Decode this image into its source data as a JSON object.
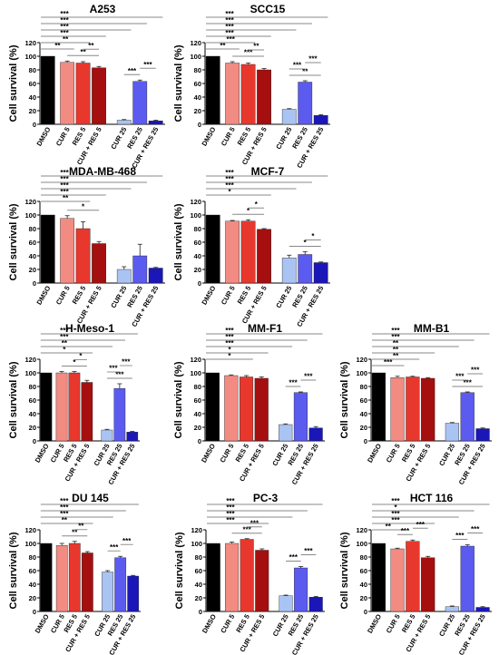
{
  "colors": {
    "DMSO": "#000000",
    "CUR 5": "#f28b82",
    "RES 5": "#e8382e",
    "CUR + RES 5": "#a50f0f",
    "CUR 25": "#a9c4f2",
    "RES 25": "#5b5bf0",
    "CUR + RES 25": "#1a16b8",
    "axis": "#000000",
    "sig_line": "#888888"
  },
  "shared_ylabel": "Cell survival (%)",
  "chart_data": [
    {
      "type": "bar",
      "title": "A253",
      "categories": [
        "DMSO",
        "CUR 5",
        "RES 5",
        "CUR + RES 5",
        "CUR 25",
        "RES 25",
        "CUR + RES 25"
      ],
      "values": [
        100,
        91,
        90,
        83,
        6,
        63,
        5
      ],
      "errors": [
        0,
        2,
        2,
        2,
        1,
        2,
        1
      ],
      "ylabel": "Cell survival (%)",
      "ylim": [
        0,
        120
      ],
      "yticks": [
        0,
        20,
        40,
        60,
        80,
        100,
        120
      ],
      "significance": [
        {
          "from": 0,
          "to": 6,
          "label": "***"
        },
        {
          "from": 0,
          "to": 5,
          "label": "***"
        },
        {
          "from": 0,
          "to": 4,
          "label": "***"
        },
        {
          "from": 0,
          "to": 3,
          "label": "***"
        },
        {
          "from": 0,
          "to": 2,
          "label": "**"
        },
        {
          "from": 0,
          "to": 1,
          "label": "**"
        },
        {
          "from": 1,
          "to": 3,
          "label": "**"
        },
        {
          "from": 2,
          "to": 3,
          "label": "**"
        },
        {
          "from": 4,
          "to": 5,
          "label": "***"
        },
        {
          "from": 5,
          "to": 6,
          "label": "***"
        }
      ]
    },
    {
      "type": "bar",
      "title": "SCC15",
      "categories": [
        "DMSO",
        "CUR 5",
        "RES 5",
        "CUR + RES 5",
        "CUR 25",
        "RES 25",
        "CUR + RES 25"
      ],
      "values": [
        100,
        90,
        88,
        80,
        22,
        62,
        13
      ],
      "errors": [
        0,
        2,
        2,
        2,
        1,
        2,
        1
      ],
      "ylabel": "Cell survival (%)",
      "ylim": [
        0,
        120
      ],
      "yticks": [
        0,
        20,
        40,
        60,
        80,
        100,
        120
      ],
      "significance": [
        {
          "from": 0,
          "to": 6,
          "label": "***"
        },
        {
          "from": 0,
          "to": 5,
          "label": "***"
        },
        {
          "from": 0,
          "to": 4,
          "label": "***"
        },
        {
          "from": 0,
          "to": 3,
          "label": "***"
        },
        {
          "from": 0,
          "to": 2,
          "label": "***"
        },
        {
          "from": 0,
          "to": 1,
          "label": "**"
        },
        {
          "from": 1,
          "to": 3,
          "label": "***"
        },
        {
          "from": 2,
          "to": 3,
          "label": "**"
        },
        {
          "from": 4,
          "to": 6,
          "label": "**"
        },
        {
          "from": 4,
          "to": 5,
          "label": "***"
        },
        {
          "from": 5,
          "to": 6,
          "label": "***"
        }
      ]
    },
    {
      "type": "bar",
      "title": "MDA-MB-468",
      "categories": [
        "DMSO",
        "CUR 5",
        "RES 5",
        "CUR + RES 5",
        "CUR 25",
        "RES 25",
        "CUR + RES 25"
      ],
      "values": [
        100,
        95,
        80,
        58,
        20,
        40,
        22
      ],
      "errors": [
        0,
        4,
        10,
        3,
        4,
        17,
        1
      ],
      "ylabel": "Cell survival (%)",
      "ylim": [
        0,
        120
      ],
      "yticks": [
        0,
        20,
        40,
        60,
        80,
        100,
        120
      ],
      "significance": [
        {
          "from": 0,
          "to": 6,
          "label": "***"
        },
        {
          "from": 0,
          "to": 5,
          "label": "***"
        },
        {
          "from": 0,
          "to": 4,
          "label": "***"
        },
        {
          "from": 0,
          "to": 3,
          "label": "***"
        },
        {
          "from": 0,
          "to": 2,
          "label": "**"
        },
        {
          "from": 1,
          "to": 3,
          "label": "*"
        }
      ]
    },
    {
      "type": "bar",
      "title": "MCF-7",
      "categories": [
        "DMSO",
        "CUR 5",
        "RES 5",
        "CUR + RES 5",
        "CUR 25",
        "RES 25",
        "CUR + RES 25"
      ],
      "values": [
        100,
        91,
        91,
        79,
        37,
        42,
        30
      ],
      "errors": [
        0,
        1,
        2,
        1,
        4,
        4,
        1
      ],
      "ylabel": "Cell survival (%)",
      "ylim": [
        0,
        120
      ],
      "yticks": [
        0,
        20,
        40,
        60,
        80,
        100,
        120
      ],
      "significance": [
        {
          "from": 0,
          "to": 6,
          "label": "***"
        },
        {
          "from": 0,
          "to": 5,
          "label": "***"
        },
        {
          "from": 0,
          "to": 4,
          "label": "***"
        },
        {
          "from": 0,
          "to": 3,
          "label": "*"
        },
        {
          "from": 1,
          "to": 3,
          "label": "*"
        },
        {
          "from": 2,
          "to": 3,
          "label": "*"
        },
        {
          "from": 4,
          "to": 6,
          "label": "*"
        },
        {
          "from": 5,
          "to": 6,
          "label": "*"
        }
      ]
    },
    {
      "type": "bar",
      "title": "H-Meso-1",
      "categories": [
        "DMSO",
        "CUR 5",
        "RES 5",
        "CUR + RES 5",
        "CUR 25",
        "RES 25",
        "CUR + RES 25"
      ],
      "values": [
        100,
        100,
        100,
        86,
        16,
        77,
        13
      ],
      "errors": [
        0,
        2,
        2,
        3,
        1,
        7,
        1
      ],
      "ylabel": "Cell survival (%)",
      "ylim": [
        0,
        120
      ],
      "yticks": [
        0,
        20,
        40,
        60,
        80,
        100,
        120
      ],
      "significance": [
        {
          "from": 0,
          "to": 6,
          "label": "***"
        },
        {
          "from": 0,
          "to": 5,
          "label": "***"
        },
        {
          "from": 0,
          "to": 4,
          "label": "**"
        },
        {
          "from": 0,
          "to": 3,
          "label": "*"
        },
        {
          "from": 1,
          "to": 3,
          "label": "*"
        },
        {
          "from": 2,
          "to": 3,
          "label": "*"
        },
        {
          "from": 4,
          "to": 6,
          "label": "***"
        },
        {
          "from": 4,
          "to": 5,
          "label": "***"
        },
        {
          "from": 5,
          "to": 6,
          "label": "***"
        }
      ]
    },
    {
      "type": "bar",
      "title": "MM-F1",
      "categories": [
        "DMSO",
        "CUR 5",
        "RES 5",
        "CUR + RES 5",
        "CUR 25",
        "RES 25",
        "CUR + RES 25"
      ],
      "values": [
        100,
        96,
        94,
        92,
        24,
        71,
        19
      ],
      "errors": [
        0,
        1,
        2,
        2,
        1,
        1,
        2
      ],
      "ylabel": "Cell survival (%)",
      "ylim": [
        0,
        120
      ],
      "yticks": [
        0,
        20,
        40,
        60,
        80,
        100,
        120
      ],
      "significance": [
        {
          "from": 0,
          "to": 6,
          "label": "***"
        },
        {
          "from": 0,
          "to": 5,
          "label": "***"
        },
        {
          "from": 0,
          "to": 4,
          "label": "***"
        },
        {
          "from": 0,
          "to": 3,
          "label": "*"
        },
        {
          "from": 0,
          "to": 2,
          "label": "*"
        },
        {
          "from": 4,
          "to": 5,
          "label": "***"
        },
        {
          "from": 5,
          "to": 6,
          "label": "***"
        }
      ]
    },
    {
      "type": "bar",
      "title": "MM-B1",
      "categories": [
        "DMSO",
        "CUR 5",
        "RES 5",
        "CUR + RES 5",
        "CUR 25",
        "RES 25",
        "CUR + RES 25"
      ],
      "values": [
        100,
        93,
        94,
        92,
        26,
        71,
        18
      ],
      "errors": [
        0,
        2,
        1,
        1,
        1,
        1,
        1
      ],
      "ylabel": "Cell survival (%)",
      "ylim": [
        0,
        120
      ],
      "yticks": [
        0,
        20,
        40,
        60,
        80,
        100,
        120
      ],
      "significance": [
        {
          "from": 0,
          "to": 6,
          "label": "***"
        },
        {
          "from": 0,
          "to": 5,
          "label": "***"
        },
        {
          "from": 0,
          "to": 4,
          "label": "**"
        },
        {
          "from": 0,
          "to": 3,
          "label": "**"
        },
        {
          "from": 0,
          "to": 2,
          "label": "**"
        },
        {
          "from": 0,
          "to": 1,
          "label": "***"
        },
        {
          "from": 4,
          "to": 6,
          "label": "***"
        },
        {
          "from": 4,
          "to": 5,
          "label": "***"
        },
        {
          "from": 5,
          "to": 6,
          "label": "***"
        }
      ]
    },
    {
      "type": "bar",
      "title": "DU 145",
      "categories": [
        "DMSO",
        "CUR 5",
        "RES 5",
        "CUR + RES 5",
        "CUR 25",
        "RES 25",
        "CUR + RES 25"
      ],
      "values": [
        100,
        97,
        100,
        86,
        58,
        79,
        52
      ],
      "errors": [
        0,
        3,
        3,
        2,
        2,
        2,
        1
      ],
      "ylabel": "Cell survival (%)",
      "ylim": [
        0,
        120
      ],
      "yticks": [
        0,
        20,
        40,
        60,
        80,
        100,
        120
      ],
      "significance": [
        {
          "from": 0,
          "to": 6,
          "label": "***"
        },
        {
          "from": 0,
          "to": 5,
          "label": "***"
        },
        {
          "from": 0,
          "to": 4,
          "label": "***"
        },
        {
          "from": 0,
          "to": 3,
          "label": "**"
        },
        {
          "from": 1,
          "to": 3,
          "label": "**"
        },
        {
          "from": 2,
          "to": 3,
          "label": "**"
        },
        {
          "from": 4,
          "to": 5,
          "label": "***"
        },
        {
          "from": 5,
          "to": 6,
          "label": "***"
        }
      ]
    },
    {
      "type": "bar",
      "title": "PC-3",
      "categories": [
        "DMSO",
        "CUR 5",
        "RES 5",
        "CUR + RES 5",
        "CUR 25",
        "RES 25",
        "CUR + RES 25"
      ],
      "values": [
        100,
        100,
        106,
        90,
        23,
        64,
        21
      ],
      "errors": [
        0,
        2,
        1,
        2,
        1,
        2,
        1
      ],
      "ylabel": "Cell survival (%)",
      "ylim": [
        0,
        120
      ],
      "yticks": [
        0,
        20,
        40,
        60,
        80,
        100,
        120
      ],
      "significance": [
        {
          "from": 0,
          "to": 6,
          "label": "***"
        },
        {
          "from": 0,
          "to": 5,
          "label": "***"
        },
        {
          "from": 0,
          "to": 4,
          "label": "***"
        },
        {
          "from": 0,
          "to": 3,
          "label": "***"
        },
        {
          "from": 1,
          "to": 3,
          "label": "***"
        },
        {
          "from": 2,
          "to": 3,
          "label": "***"
        },
        {
          "from": 4,
          "to": 5,
          "label": "***"
        },
        {
          "from": 5,
          "to": 6,
          "label": "***"
        }
      ]
    },
    {
      "type": "bar",
      "title": "HCT 116",
      "categories": [
        "DMSO",
        "CUR 5",
        "RES 5",
        "CUR + RES 5",
        "CUR 25",
        "RES 25",
        "CUR + RES 25"
      ],
      "values": [
        100,
        92,
        103,
        79,
        7,
        96,
        6
      ],
      "errors": [
        0,
        1,
        2,
        2,
        1,
        2,
        1
      ],
      "ylabel": "Cell survival (%)",
      "ylim": [
        0,
        120
      ],
      "yticks": [
        0,
        20,
        40,
        60,
        80,
        100,
        120
      ],
      "significance": [
        {
          "from": 0,
          "to": 6,
          "label": "***"
        },
        {
          "from": 0,
          "to": 5,
          "label": "*"
        },
        {
          "from": 0,
          "to": 4,
          "label": "***"
        },
        {
          "from": 0,
          "to": 3,
          "label": "***"
        },
        {
          "from": 0,
          "to": 1,
          "label": "**"
        },
        {
          "from": 1,
          "to": 2,
          "label": "***"
        },
        {
          "from": 2,
          "to": 3,
          "label": "***"
        },
        {
          "from": 4,
          "to": 5,
          "label": "***"
        },
        {
          "from": 5,
          "to": 6,
          "label": "***"
        }
      ]
    }
  ]
}
